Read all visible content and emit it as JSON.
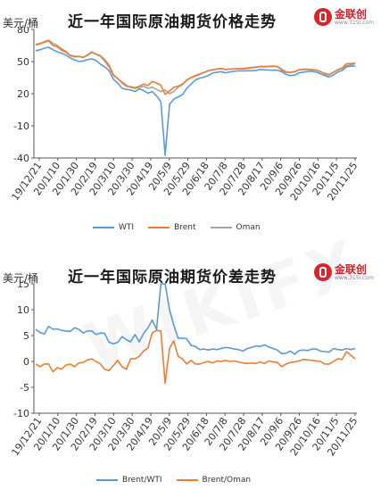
{
  "brand": {
    "name": "金联创",
    "url": "www.315i.com",
    "accent": "#d7262b"
  },
  "chart_data": [
    {
      "type": "line",
      "title": "近一年国际原油期货价格走势",
      "ylabel": "美元/桶",
      "ylim": [
        -40,
        80
      ],
      "yticks": [
        -40,
        -10,
        20,
        50,
        80
      ],
      "xticks": [
        "19/12/21",
        "20/1/10",
        "20/1/30",
        "20/2/19",
        "20/3/10",
        "20/3/30",
        "20/4/19",
        "20/5/9",
        "20/5/29",
        "20/6/18",
        "20/7/8",
        "20/7/28",
        "20/8/17",
        "20/9/6",
        "20/9/26",
        "20/10/16",
        "20/11/5",
        "20/11/25"
      ],
      "series": [
        {
          "name": "WTI",
          "color": "#5b9bd5",
          "values": [
            60.2,
            61,
            62.5,
            63.3,
            61,
            59.2,
            57.8,
            56,
            53.5,
            51.6,
            50.2,
            50.5,
            51.8,
            52.5,
            51,
            47.5,
            45.2,
            41.5,
            33.5,
            30,
            25.1,
            24,
            23.5,
            22,
            24.5,
            23,
            20.5,
            22,
            18,
            12.3,
            -37.6,
            10,
            15,
            17,
            19,
            25,
            29,
            32.8,
            34.5,
            35.5,
            37,
            39.3,
            40.1,
            40.6,
            39.5,
            40.3,
            41,
            41.4,
            41.3,
            41.4,
            41.5,
            41.6,
            42.7,
            42.3,
            42.1,
            41.9,
            42,
            40.5,
            38,
            36.9,
            37.3,
            39.4,
            40.2,
            40.7,
            41,
            40.2,
            38.5,
            36.8,
            35.7,
            37.5,
            40.2,
            41.7,
            45.2,
            45.7,
            46
          ]
        },
        {
          "name": "Brent",
          "color": "#ed7d31",
          "values": [
            65.5,
            66.5,
            68,
            69.5,
            65,
            63.8,
            60.5,
            58.8,
            55.5,
            54.4,
            54.7,
            53.8,
            56.3,
            59,
            57,
            55,
            50.5,
            45.2,
            37.2,
            34.2,
            30,
            27,
            26.5,
            25.5,
            27,
            29,
            27.6,
            31.5,
            30,
            27.9,
            19.3,
            22.5,
            26,
            27,
            29,
            32.5,
            35.2,
            36.5,
            38,
            39.8,
            41.5,
            42.2,
            43.1,
            43.5,
            42.7,
            43,
            43.3,
            43.4,
            43.2,
            43.6,
            44.2,
            44.6,
            45.4,
            45.1,
            45.6,
            45.7,
            45.3,
            42,
            40,
            39.8,
            40.6,
            42.3,
            42.9,
            42.8,
            42.5,
            42.1,
            40.5,
            38.5,
            37.5,
            40,
            42.5,
            43.9,
            47.9,
            48.2,
            48.5
          ]
        },
        {
          "name": "Oman",
          "color": "#a5a5a5",
          "values": [
            66,
            67,
            68.5,
            70,
            67,
            65,
            62,
            59.5,
            56,
            55,
            55,
            54,
            56,
            58.5,
            57,
            55.5,
            52,
            47,
            38,
            34,
            31,
            28,
            26,
            25,
            26,
            27,
            25,
            26,
            24,
            22,
            23.5,
            20,
            22,
            26,
            28.5,
            33,
            35,
            37,
            38.5,
            40,
            41.5,
            42.5,
            43,
            43.5,
            42.5,
            43,
            43.2,
            43.5,
            43.5,
            44,
            44.5,
            45,
            45.5,
            45.5,
            45.5,
            45.8,
            45.5,
            43,
            40.5,
            40,
            40.7,
            42.2,
            42.5,
            42.5,
            42.3,
            42,
            40.5,
            39,
            38,
            40,
            42,
            43.5,
            46,
            47,
            48
          ]
        }
      ]
    },
    {
      "type": "line",
      "title": "近一年国际原油期货价差走势",
      "ylabel": "美元/桶",
      "ylim": [
        -10,
        15
      ],
      "yticks": [
        -10,
        -5,
        0,
        5,
        10,
        15
      ],
      "xticks": [
        "19/12/21",
        "20/1/10",
        "20/1/30",
        "20/2/19",
        "20/3/10",
        "20/3/30",
        "20/4/19",
        "20/5/9",
        "20/5/29",
        "20/6/18",
        "20/7/8",
        "20/7/28",
        "20/8/17",
        "20/9/6",
        "20/9/26",
        "20/10/16",
        "20/11/5",
        "20/11/25"
      ],
      "series": [
        {
          "name": "Brent/WTI",
          "color": "#5b9bd5",
          "values": [
            6.2,
            5.6,
            5.3,
            6.8,
            6.2,
            6.3,
            6,
            5.9,
            5.8,
            6.5,
            6.2,
            5.5,
            5.9,
            5.9,
            5.2,
            5.5,
            5.4,
            3.7,
            3.4,
            3.7,
            4.8,
            4.2,
            3.8,
            5.2,
            3.8,
            5.4,
            6.5,
            8,
            6.2,
            15,
            15,
            10,
            7,
            4.5,
            4.5,
            4.4,
            3.1,
            2.9,
            2.3,
            2.4,
            2.2,
            2.4,
            2.3,
            2.5,
            2.7,
            2.6,
            2.4,
            2.3,
            2,
            2.5,
            2.7,
            3,
            2.9,
            3.2,
            2.8,
            2.5,
            2.2,
            1.5,
            1.6,
            2,
            1.4,
            2.1,
            2.2,
            2.1,
            2.4,
            2.4,
            2,
            1.9,
            1.8,
            2.5,
            2.3,
            2.2,
            2.5,
            2.3,
            2.5
          ]
        },
        {
          "name": "Brent/Oman",
          "color": "#ed7d31",
          "values": [
            -0.5,
            -1,
            -0.5,
            -0.5,
            -2,
            -1.2,
            -1.5,
            -0.7,
            -0.5,
            -1,
            -0.3,
            -0.2,
            0.3,
            0.5,
            0,
            -0.5,
            -1.5,
            -1.8,
            -0.8,
            0.2,
            -1,
            -1.5,
            0.5,
            0.5,
            1,
            2,
            2.6,
            5.5,
            6,
            5.9,
            -4.2,
            2.5,
            4,
            1,
            0.5,
            -0.5,
            0.2,
            -0.5,
            -0.5,
            -0.2,
            0,
            -0.3,
            0.1,
            0,
            0.2,
            0,
            0.1,
            -0.1,
            -0.3,
            -0.4,
            -0.3,
            -0.4,
            -0.1,
            -0.4,
            0.1,
            -0.1,
            -0.2,
            -1,
            -0.5,
            -0.2,
            -0.1,
            0.1,
            0.4,
            0.3,
            0.2,
            0.1,
            0,
            -0.5,
            -0.5,
            0,
            0.5,
            0.4,
            1.9,
            1.2,
            0.5
          ]
        }
      ]
    }
  ]
}
